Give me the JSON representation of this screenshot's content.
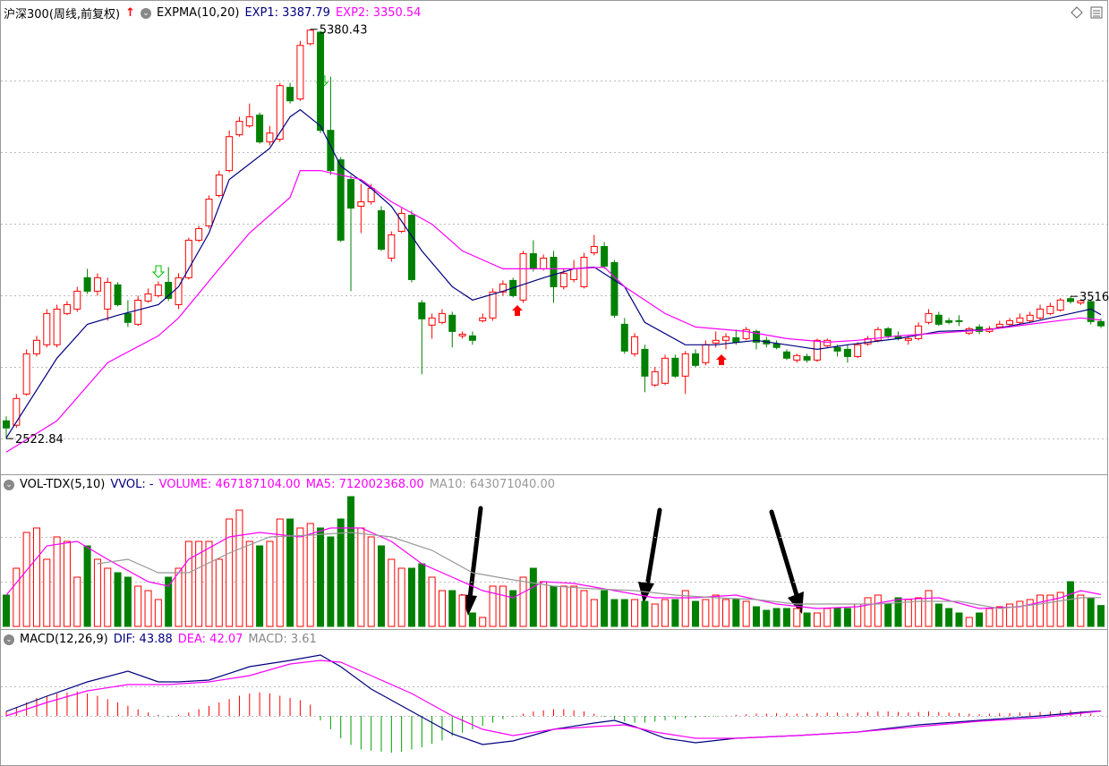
{
  "chart_data": [
    {
      "type": "candlestick",
      "title": "沪深300(周线,前复权)",
      "indicator": "EXPMA(10,20)",
      "open": [
        2647,
        2616,
        2834,
        3115,
        3178,
        3178,
        3396,
        3427,
        3646,
        3552,
        3427,
        3596,
        3396,
        3321,
        3483,
        3521,
        3614,
        3458,
        3646,
        3908,
        4008,
        4220,
        4394,
        4644,
        4706,
        4781,
        4594,
        4613,
        4975,
        4894,
        5280,
        5360,
        4675,
        4469,
        4332,
        4145,
        4176,
        4114,
        3783,
        3970,
        4082,
        3471,
        3315,
        3334,
        3384,
        3240,
        3240,
        3346,
        3365,
        3546,
        3627,
        3490,
        3814,
        3708,
        3789,
        3583,
        3633,
        3583,
        3820,
        3864,
        3752,
        3321,
        3115,
        3146,
        2897,
        2909,
        3084,
        2959,
        3115,
        3053,
        3190,
        3209,
        3227,
        3221,
        3271,
        3209,
        3184,
        3128,
        3071,
        3096,
        3071,
        3171,
        3159,
        3146,
        3096,
        3184,
        3209,
        3290,
        3240,
        3209,
        3221,
        3334,
        3384,
        3346,
        3346,
        3259,
        3302,
        3271,
        3302,
        3321,
        3334,
        3346,
        3365,
        3396,
        3420,
        3500,
        3470,
        3480,
        3340
      ],
      "high": [
        2678,
        2834,
        3146,
        3240,
        3427,
        3458,
        3483,
        3583,
        3708,
        3677,
        3646,
        3614,
        3489,
        3521,
        3571,
        3621,
        3720,
        3677,
        3926,
        4008,
        4220,
        4394,
        4675,
        4769,
        4862,
        4800,
        4706,
        5006,
        5006,
        5299,
        5380.43,
        5370,
        5050,
        4488,
        4363,
        4301,
        4301,
        4145,
        3970,
        4132,
        4114,
        3490,
        3396,
        3427,
        3408,
        3271,
        3271,
        3396,
        3571,
        3627,
        3646,
        3833,
        3908,
        3808,
        3833,
        3708,
        3770,
        3820,
        3945,
        3895,
        3770,
        3365,
        3259,
        3178,
        3022,
        3109,
        3109,
        3134,
        3146,
        3209,
        3271,
        3259,
        3284,
        3302,
        3284,
        3234,
        3209,
        3146,
        3115,
        3115,
        3221,
        3221,
        3178,
        3178,
        3196,
        3240,
        3302,
        3302,
        3271,
        3240,
        3334,
        3427,
        3408,
        3365,
        3384,
        3302,
        3321,
        3309,
        3346,
        3365,
        3396,
        3408,
        3458,
        3471,
        3505,
        3516,
        3495,
        3490,
        3360
      ],
      "low": [
        2522.84,
        2597,
        2822,
        3096,
        3159,
        3159,
        3384,
        3408,
        3533,
        3521,
        3346,
        3446,
        3302,
        3309,
        3471,
        3508,
        3483,
        3427,
        3633,
        3895,
        3989,
        4207,
        4382,
        4631,
        4694,
        4582,
        4569,
        4594,
        4862,
        4881,
        5268,
        4656,
        4363,
        3895,
        3552,
        3958,
        4157,
        3833,
        3758,
        3958,
        3614,
        2972,
        3221,
        3321,
        3159,
        3221,
        3178,
        3334,
        3346,
        3521,
        3508,
        3471,
        3689,
        3696,
        3471,
        3564,
        3614,
        3571,
        3802,
        3708,
        3365,
        3115,
        3096,
        2847,
        2884,
        2897,
        2947,
        2834,
        3022,
        3034,
        3159,
        3146,
        3178,
        3209,
        3146,
        3159,
        3146,
        3071,
        3053,
        3053,
        3059,
        3159,
        3096,
        3053,
        3084,
        3171,
        3196,
        3221,
        3209,
        3178,
        3209,
        3321,
        3309,
        3321,
        3309,
        3246,
        3252,
        3259,
        3290,
        3309,
        3321,
        3334,
        3352,
        3384,
        3410,
        3465,
        3455,
        3320,
        3295
      ],
      "close": [
        2597,
        2803,
        3115,
        3209,
        3396,
        3427,
        3458,
        3552,
        3552,
        3646,
        3614,
        3458,
        3334,
        3489,
        3533,
        3596,
        3502,
        3646,
        3908,
        3989,
        4195,
        4363,
        4631,
        4738,
        4769,
        4594,
        4656,
        4987,
        4881,
        5268,
        5374,
        4675,
        4394,
        3908,
        4132,
        4176,
        4270,
        3845,
        3945,
        4095,
        3633,
        3359,
        3365,
        3396,
        3271,
        3252,
        3209,
        3365,
        3546,
        3602,
        3521,
        3814,
        3708,
        3783,
        3583,
        3677,
        3708,
        3789,
        3864,
        3727,
        3384,
        3134,
        3234,
        2959,
        2990,
        3084,
        2959,
        3115,
        3034,
        3178,
        3209,
        3234,
        3196,
        3284,
        3196,
        3184,
        3159,
        3084,
        3103,
        3071,
        3209,
        3209,
        3134,
        3096,
        3178,
        3221,
        3284,
        3240,
        3221,
        3221,
        3309,
        3396,
        3321,
        3334,
        3340,
        3290,
        3271,
        3290,
        3321,
        3346,
        3365,
        3384,
        3427,
        3446,
        3490,
        3480,
        3485,
        3340,
        3310
      ],
      "up_color": "#ff0000",
      "down_color": "#008000",
      "series": [
        {
          "name": "EXP1",
          "legend_label": "EXP1: 3387.79",
          "color": "#000080",
          "x": [
            0,
            5,
            8,
            11,
            15,
            17,
            20,
            22,
            26,
            28,
            29,
            31,
            33,
            36,
            38,
            41,
            44,
            46,
            49,
            53,
            56,
            58,
            61,
            63,
            67,
            70,
            74,
            77,
            80,
            83,
            88,
            92,
            97,
            101,
            105,
            107,
            108
          ],
          "values": [
            2528,
            3084,
            3321,
            3384,
            3458,
            3583,
            3958,
            4332,
            4550,
            4769,
            4819,
            4706,
            4426,
            4270,
            4145,
            3833,
            3583,
            3490,
            3552,
            3646,
            3708,
            3720,
            3583,
            3334,
            3178,
            3178,
            3209,
            3178,
            3146,
            3178,
            3221,
            3271,
            3284,
            3334,
            3396,
            3427,
            3387.79
          ]
        },
        {
          "name": "EXP2",
          "legend_label": "EXP2: 3350.54",
          "color": "#ff00ff",
          "x": [
            0,
            5,
            10,
            15,
            17,
            21,
            24,
            28,
            29,
            31,
            35,
            38,
            42,
            45,
            49,
            53,
            56,
            59,
            61,
            65,
            68,
            73,
            77,
            81,
            84,
            88,
            92,
            97,
            101,
            106,
            108
          ],
          "values": [
            2429,
            2647,
            3053,
            3240,
            3365,
            3708,
            3958,
            4207,
            4394,
            4394,
            4332,
            4176,
            4020,
            3833,
            3708,
            3708,
            3708,
            3720,
            3583,
            3396,
            3302,
            3271,
            3221,
            3196,
            3209,
            3240,
            3259,
            3284,
            3321,
            3365,
            3350.54
          ]
        }
      ],
      "annotations": [
        {
          "label": "5380.43",
          "value": 5380.43
        },
        {
          "label": "2522.84",
          "value": 2522.84
        },
        {
          "label": "3516",
          "value": 3516
        }
      ],
      "xlim": [
        0,
        108
      ],
      "ylim": [
        2280,
        5460
      ]
    },
    {
      "type": "volume",
      "title": "VOL-TDX(5,10)",
      "indicator_label": "VVOL: -",
      "values": [
        700000000,
        1300000000,
        2100000000,
        2200000000,
        1500000000,
        2000000000,
        1900000000,
        1100000000,
        1800000000,
        1500000000,
        1300000000,
        1200000000,
        1100000000,
        900000000,
        800000000,
        600000000,
        1100000000,
        1300000000,
        1900000000,
        1900000000,
        1900000000,
        1500000000,
        2400000000,
        2600000000,
        1900000000,
        1800000000,
        1900000000,
        2400000000,
        2400000000,
        2200000000,
        2300000000,
        2200000000,
        2000000000,
        2400000000,
        2900000000,
        2200000000,
        2000000000,
        1800000000,
        1500000000,
        1300000000,
        1300000000,
        1400000000,
        1100000000,
        800000000,
        800000000,
        700000000,
        300000000,
        200000000,
        900000000,
        900000000,
        800000000,
        1100000000,
        1300000000,
        1000000000,
        900000000,
        900000000,
        900000000,
        800000000,
        600000000,
        800000000,
        600000000,
        600000000,
        600000000,
        560000000,
        500000000,
        600000000,
        600000000,
        800000000,
        560000000,
        600000000,
        700000000,
        600000000,
        600000000,
        560000000,
        440000000,
        360000000,
        400000000,
        400000000,
        400000000,
        300000000,
        300000000,
        400000000,
        400000000,
        400000000,
        500000000,
        640000000,
        700000000,
        500000000,
        640000000,
        600000000,
        640000000,
        800000000,
        500000000,
        400000000,
        300000000,
        200000000,
        300000000,
        400000000,
        440000000,
        500000000,
        560000000,
        600000000,
        700000000,
        700000000,
        760000000,
        1000000000,
        700000000,
        640000000,
        467187104
      ],
      "value_label": "VOLUME: 467187104.00",
      "color": "#ff00ff",
      "series": [
        {
          "name": "MA5",
          "legend_label": "MA5: 712002368.00",
          "color": "#ff00ff",
          "x": [
            0,
            4,
            7,
            10,
            14,
            16,
            18,
            22,
            25,
            29,
            32,
            35,
            38,
            41,
            44,
            47,
            50,
            53,
            56,
            60,
            64,
            68,
            72,
            76,
            80,
            84,
            88,
            92,
            96,
            100,
            104,
            106,
            108
          ],
          "values": [
            700000000,
            1800000000,
            1900000000,
            1500000000,
            1000000000,
            900000000,
            1500000000,
            2000000000,
            2100000000,
            2000000000,
            2200000000,
            2200000000,
            1900000000,
            1400000000,
            1100000000,
            800000000,
            640000000,
            1000000000,
            960000000,
            800000000,
            640000000,
            640000000,
            700000000,
            500000000,
            400000000,
            440000000,
            600000000,
            640000000,
            400000000,
            440000000,
            640000000,
            800000000,
            712002368
          ]
        },
        {
          "name": "MA10",
          "legend_label": "MA10: 643071040.00",
          "color": "#999999",
          "x": [
            9,
            12,
            15,
            18,
            22,
            26,
            30,
            34,
            38,
            42,
            46,
            50,
            54,
            58,
            62,
            66,
            70,
            74,
            78,
            82,
            86,
            90,
            94,
            98,
            102,
            106,
            108
          ],
          "values": [
            1400000000,
            1500000000,
            1200000000,
            1200000000,
            1640000000,
            2000000000,
            2040000000,
            2100000000,
            2000000000,
            1700000000,
            1200000000,
            1040000000,
            900000000,
            840000000,
            800000000,
            700000000,
            640000000,
            600000000,
            500000000,
            500000000,
            500000000,
            560000000,
            560000000,
            400000000,
            500000000,
            640000000,
            643071040
          ]
        }
      ],
      "xlim": [
        0,
        108
      ],
      "ylim": [
        0,
        3040000000
      ]
    },
    {
      "type": "macd",
      "title": "MACD(12,26,9)",
      "values": [
        40,
        80,
        120,
        160,
        180,
        200,
        210,
        220,
        200,
        180,
        150,
        120,
        90,
        60,
        30,
        10,
        -10,
        10,
        30,
        60,
        90,
        120,
        150,
        180,
        200,
        210,
        200,
        180,
        160,
        140,
        100,
        -40,
        -120,
        -200,
        -260,
        -300,
        -310,
        -320,
        -330,
        -320,
        -300,
        -280,
        -250,
        -220,
        -180,
        -150,
        -120,
        -90,
        -60,
        -30,
        -10,
        20,
        40,
        50,
        60,
        60,
        50,
        40,
        20,
        -10,
        -30,
        -50,
        -60,
        -60,
        -50,
        -40,
        -30,
        -20,
        -15,
        -10,
        -5,
        5,
        10,
        15,
        20,
        20,
        25,
        25,
        20,
        20,
        25,
        30,
        30,
        25,
        30,
        35,
        40,
        40,
        35,
        30,
        35,
        40,
        35,
        30,
        25,
        20,
        15,
        20,
        25,
        25,
        30,
        30,
        35,
        40,
        45,
        50,
        40,
        20,
        3.61
      ],
      "value_label": "MACD: 3.61",
      "color": "#888888",
      "up_color": "#ff0000",
      "down_color": "#00a000",
      "series": [
        {
          "name": "DIF",
          "legend_label": "DIF: 43.88",
          "color": "#000080",
          "x": [
            0,
            4,
            8,
            12,
            15,
            17,
            20,
            24,
            28,
            31,
            33,
            36,
            40,
            44,
            47,
            50,
            54,
            58,
            60,
            62,
            65,
            68,
            72,
            78,
            84,
            90,
            96,
            102,
            106,
            108
          ],
          "values": [
            40,
            176,
            304,
            400,
            304,
            304,
            320,
            440,
            496,
            544,
            440,
            240,
            40,
            -160,
            -256,
            -224,
            -120,
            -64,
            -40,
            -96,
            -200,
            -240,
            -200,
            -176,
            -144,
            -80,
            -40,
            0,
            32,
            43.88
          ]
        },
        {
          "name": "DEA",
          "legend_label": "DEA: 42.07",
          "color": "#ff00ff",
          "x": [
            0,
            4,
            8,
            12,
            16,
            20,
            24,
            28,
            31,
            33,
            36,
            40,
            44,
            47,
            50,
            54,
            58,
            61,
            64,
            68,
            72,
            78,
            84,
            90,
            96,
            102,
            108
          ],
          "values": [
            0,
            120,
            224,
            280,
            280,
            304,
            360,
            464,
            496,
            480,
            360,
            200,
            0,
            -120,
            -176,
            -120,
            -96,
            -80,
            -144,
            -200,
            -200,
            -176,
            -144,
            -96,
            -48,
            -16,
            42.07
          ]
        }
      ],
      "xlim": [
        0,
        108
      ],
      "ylim": [
        -440,
        624
      ]
    }
  ]
}
